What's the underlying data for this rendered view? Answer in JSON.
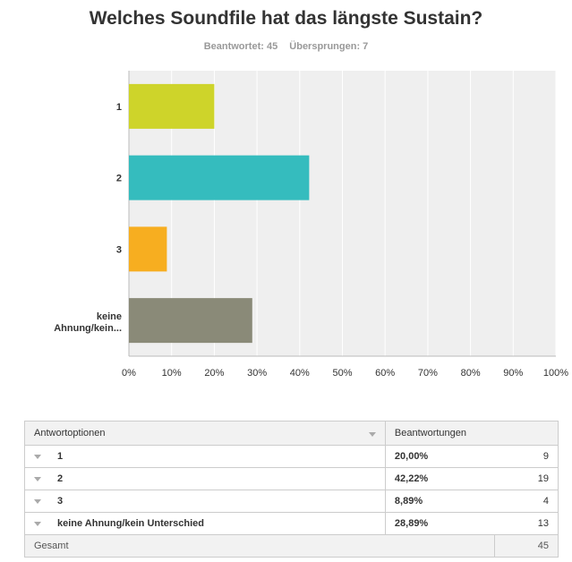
{
  "header": {
    "title": "Welches Soundfile hat das längste Sustain?",
    "answered": "Beantwortet: 45",
    "skipped": "Übersprungen: 7"
  },
  "chart_data": {
    "type": "bar",
    "orientation": "horizontal",
    "categories": [
      "1",
      "2",
      "3",
      "keine Ahnung/kein..."
    ],
    "values": [
      20.0,
      42.22,
      8.89,
      28.89
    ],
    "colors": [
      "#ced42a",
      "#35bcbe",
      "#f7ae20",
      "#8a8a78"
    ],
    "xlim": [
      0,
      100
    ],
    "x_ticks": [
      "0%",
      "10%",
      "20%",
      "30%",
      "40%",
      "50%",
      "60%",
      "70%",
      "80%",
      "90%",
      "100%"
    ],
    "grid": true,
    "background": "#efefef"
  },
  "table": {
    "headers": [
      "Antwortoptionen",
      "Beantwortungen"
    ],
    "rows": [
      {
        "option": "1",
        "percent": "20,00%",
        "count": "9"
      },
      {
        "option": "2",
        "percent": "42,22%",
        "count": "19"
      },
      {
        "option": "3",
        "percent": "8,89%",
        "count": "4"
      },
      {
        "option": "keine Ahnung/kein Unterschied",
        "percent": "28,89%",
        "count": "13"
      }
    ],
    "total_label": "Gesamt",
    "total_count": "45"
  }
}
